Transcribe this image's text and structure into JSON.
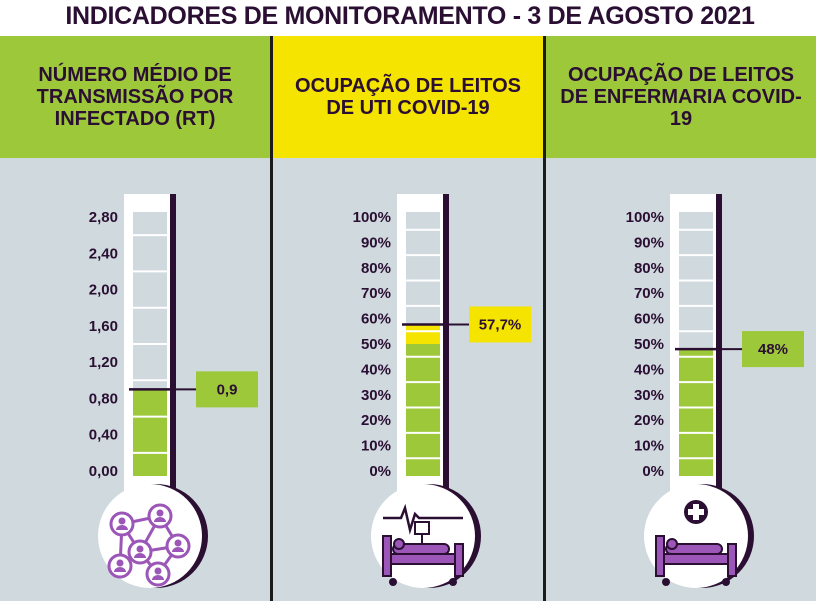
{
  "title": "INDICADORES DE MONITORAMENTO - 3 DE AGOSTO 2021",
  "colors": {
    "green": "#9dc83a",
    "yellow": "#f5e400",
    "panel_bg": "#cfd9de",
    "dark_purple": "#2a0f33",
    "icon_purple": "#9b56b8"
  },
  "panels": [
    {
      "header": "NÚMERO MÉDIO DE TRANSMISSÃO POR INFECTADO (RT)",
      "header_color": "#9dc83a",
      "fill_color": "#9dc83a",
      "ticks": [
        "2,80",
        "2,40",
        "2,00",
        "1,60",
        "1,20",
        "0,80",
        "0,40",
        "0,00"
      ],
      "scale_min": 0,
      "scale_max": 2.8,
      "value": 0.9,
      "value_label": "0,9",
      "callout_color": "#9dc83a",
      "icon": "people-network-icon"
    },
    {
      "header": "OCUPAÇÃO DE LEITOS DE UTI COVID-19",
      "header_color": "#f5e400",
      "fill_color": "#9dc83a",
      "top_fill_color": "#f5e400",
      "ticks": [
        "100%",
        "90%",
        "80%",
        "70%",
        "60%",
        "50%",
        "40%",
        "30%",
        "20%",
        "10%",
        "0%"
      ],
      "scale_min": 0,
      "scale_max": 100,
      "value": 57.7,
      "value_label": "57,7%",
      "callout_color": "#f5e400",
      "icon": "icu-bed-icon"
    },
    {
      "header": "OCUPAÇÃO DE LEITOS DE ENFERMARIA COVID-19",
      "header_color": "#9dc83a",
      "fill_color": "#9dc83a",
      "ticks": [
        "100%",
        "90%",
        "80%",
        "70%",
        "60%",
        "50%",
        "40%",
        "30%",
        "20%",
        "10%",
        "0%"
      ],
      "scale_min": 0,
      "scale_max": 100,
      "value": 48,
      "value_label": "48%",
      "callout_color": "#9dc83a",
      "icon": "hospital-bed-icon"
    }
  ]
}
